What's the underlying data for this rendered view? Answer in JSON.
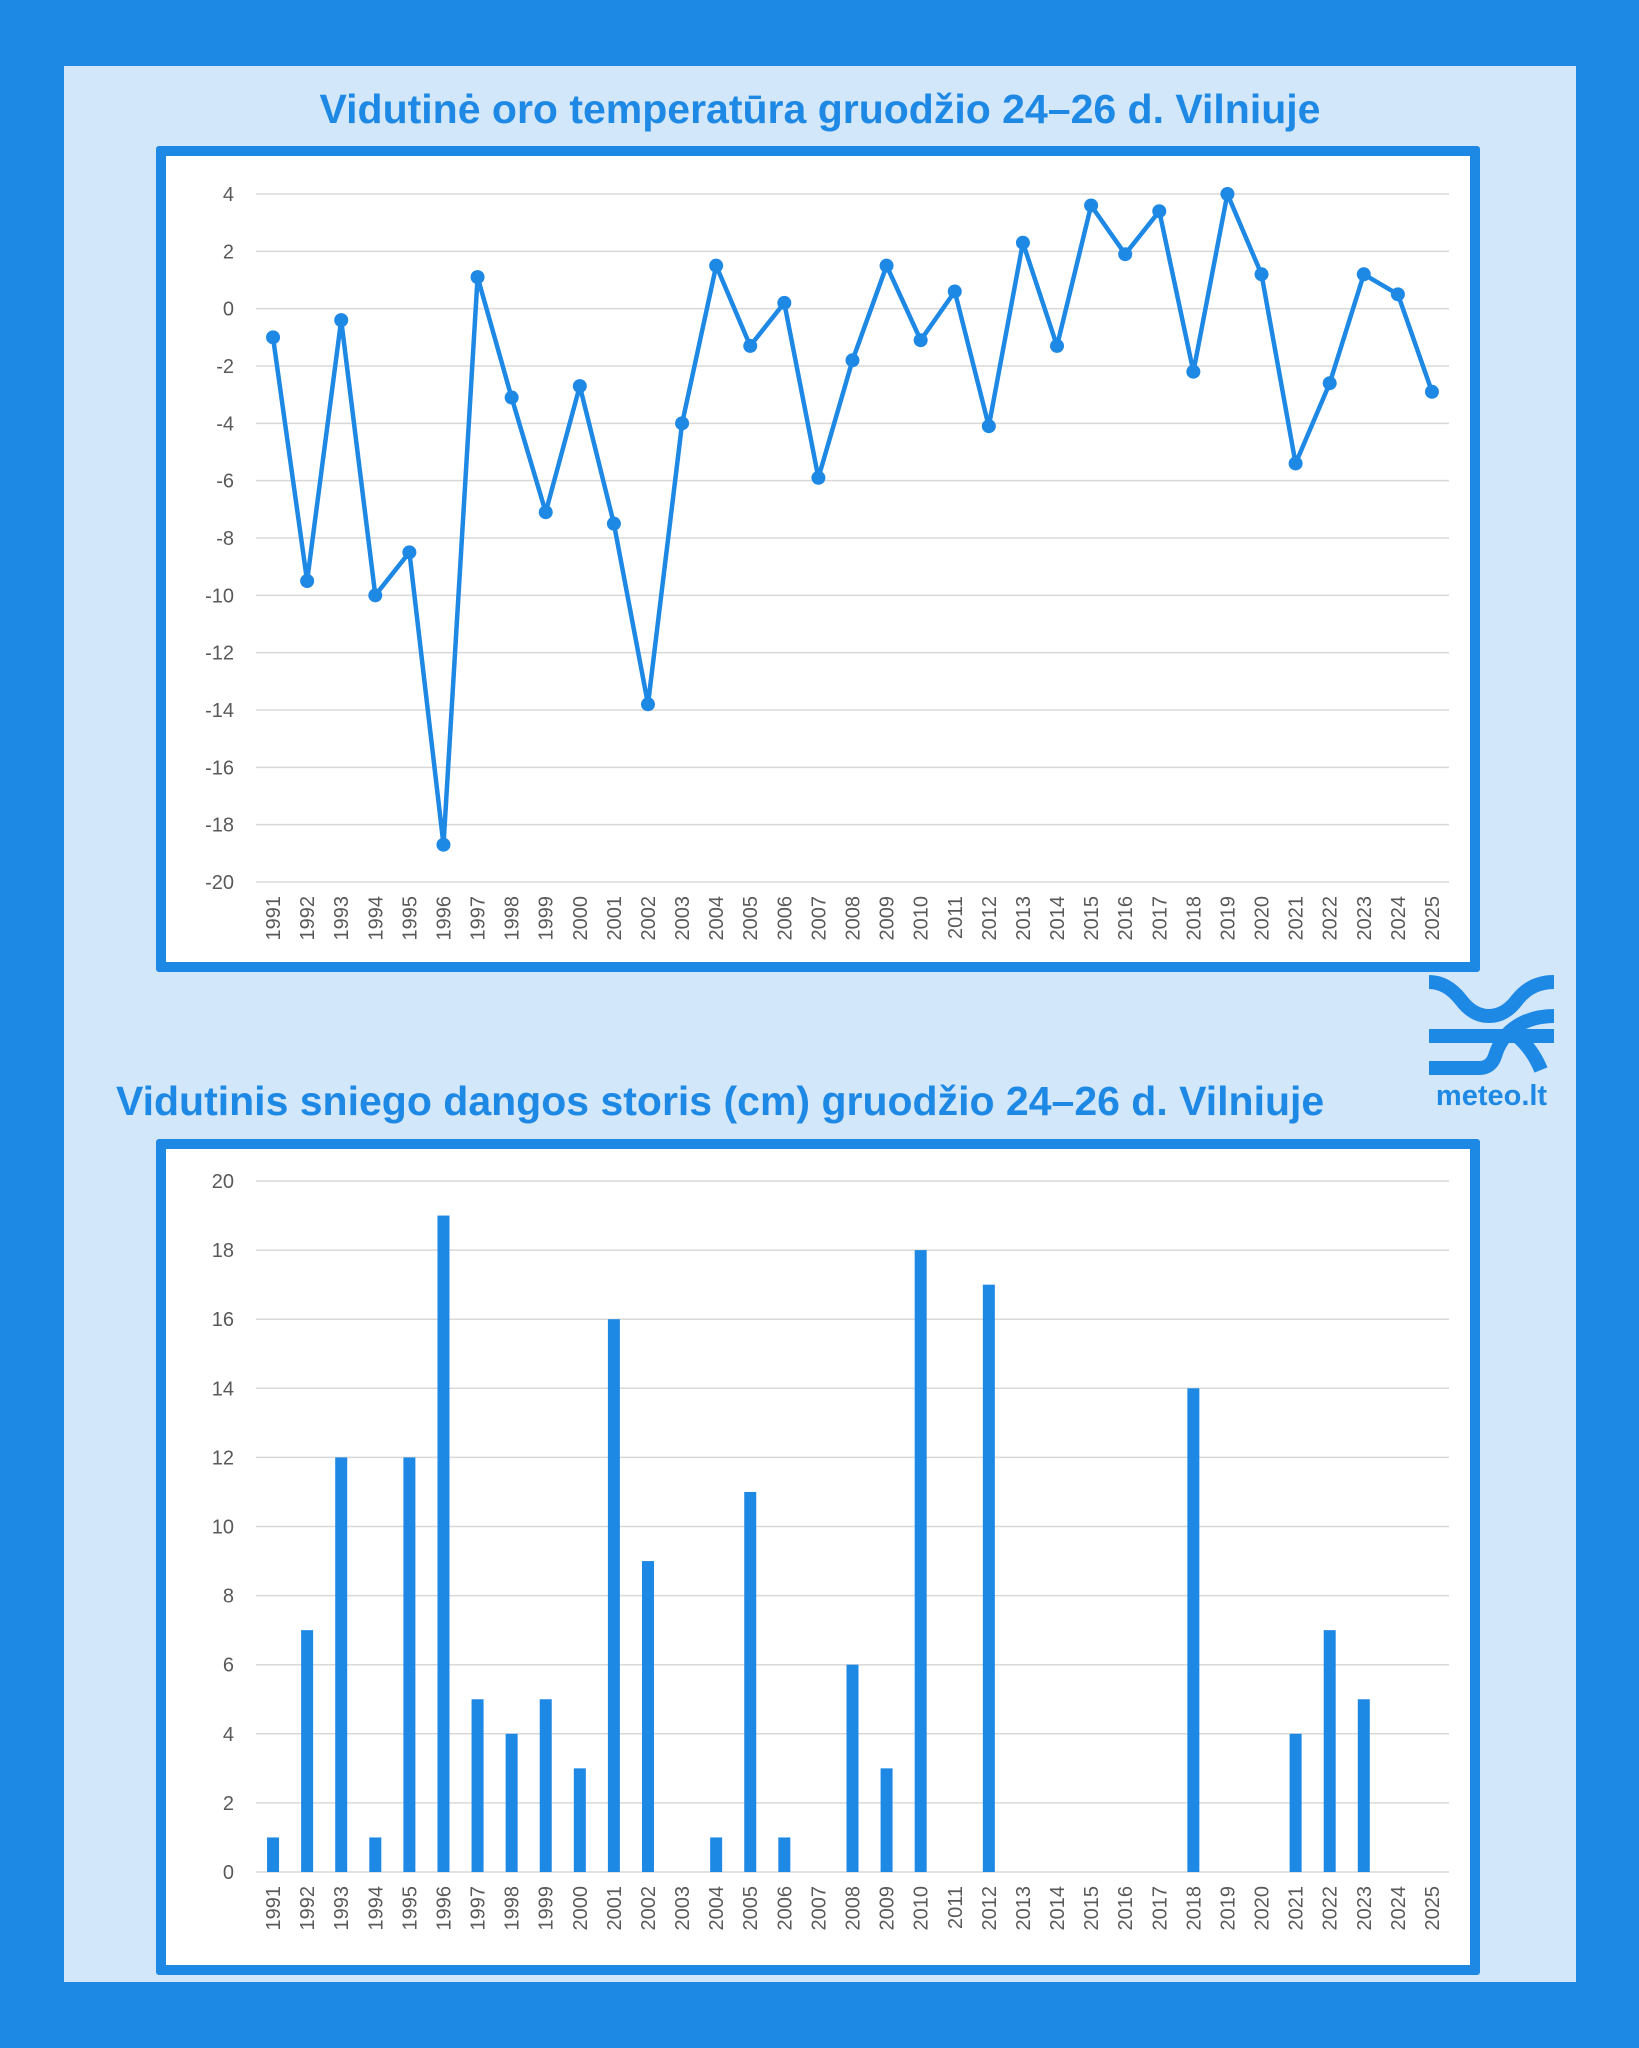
{
  "colors": {
    "background": "#1e88e5",
    "panel": "#d2e7f9",
    "accent": "#1e88e5",
    "grid": "#d9d9d9",
    "axis_text": "#595959"
  },
  "logo": {
    "text": "meteo.lt",
    "icon": "meteo-waves-logo"
  },
  "chart_data": [
    {
      "type": "line",
      "title": "Vidutinė oro temperatūra gruodžio 24–26 d. Vilniuje",
      "xlabel": "",
      "ylabel": "",
      "ylim": [
        -20,
        4
      ],
      "yticks": [
        4,
        2,
        0,
        -2,
        -4,
        -6,
        -8,
        -10,
        -12,
        -14,
        -16,
        -18,
        -20
      ],
      "grid": true,
      "legend": "none",
      "markers": true,
      "categories": [
        "1991",
        "1992",
        "1993",
        "1994",
        "1995",
        "1996",
        "1997",
        "1998",
        "1999",
        "2000",
        "2001",
        "2002",
        "2003",
        "2004",
        "2005",
        "2006",
        "2007",
        "2008",
        "2009",
        "2010",
        "2011",
        "2012",
        "2013",
        "2014",
        "2015",
        "2016",
        "2017",
        "2018",
        "2019",
        "2020",
        "2021",
        "2022",
        "2023",
        "2024",
        "2025"
      ],
      "values": [
        -1.0,
        -9.5,
        -0.4,
        -10.0,
        -8.5,
        -18.7,
        1.1,
        -3.1,
        -7.1,
        -2.7,
        -7.5,
        -13.8,
        -4.0,
        1.5,
        -1.3,
        0.2,
        -5.9,
        -1.8,
        1.5,
        -1.1,
        0.6,
        -4.1,
        2.3,
        -1.3,
        3.6,
        1.9,
        3.4,
        -2.2,
        4.0,
        1.2,
        -5.4,
        -2.6,
        1.2,
        0.5,
        -2.9
      ]
    },
    {
      "type": "bar",
      "title": "Vidutinis sniego dangos storis (cm) gruodžio 24–26 d. Vilniuje",
      "xlabel": "",
      "ylabel": "",
      "ylim": [
        0,
        20
      ],
      "yticks": [
        20,
        18,
        16,
        14,
        12,
        10,
        8,
        6,
        4,
        2,
        0
      ],
      "grid": true,
      "legend": "none",
      "categories": [
        "1991",
        "1992",
        "1993",
        "1994",
        "1995",
        "1996",
        "1997",
        "1998",
        "1999",
        "2000",
        "2001",
        "2002",
        "2003",
        "2004",
        "2005",
        "2006",
        "2007",
        "2008",
        "2009",
        "2010",
        "2011",
        "2012",
        "2013",
        "2014",
        "2015",
        "2016",
        "2017",
        "2018",
        "2019",
        "2020",
        "2021",
        "2022",
        "2023",
        "2024",
        "2025"
      ],
      "values": [
        1,
        7,
        12,
        1,
        12,
        19,
        5,
        4,
        5,
        3,
        16,
        9,
        0,
        1,
        11,
        1,
        0,
        6,
        3,
        18,
        0,
        17,
        0,
        0,
        0,
        0,
        0,
        14,
        0,
        0,
        4,
        7,
        5,
        0,
        0
      ]
    }
  ]
}
